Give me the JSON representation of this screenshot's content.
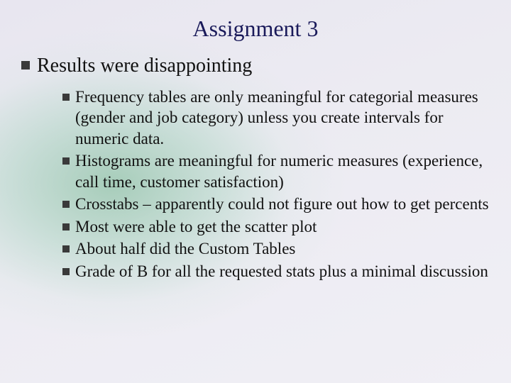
{
  "slide": {
    "title": "Assignment 3",
    "title_color": "#1a1a5a",
    "title_fontsize": 32,
    "background": {
      "radial_center": "22% 48%",
      "radial_colors": [
        "rgba(110,180,140,0.55)",
        "rgba(140,200,170,0.35)",
        "rgba(200,225,215,0.15)",
        "rgba(245,245,250,0)"
      ],
      "linear_colors": [
        "#e8e6f0",
        "#ecebf2",
        "#f0eff5"
      ]
    },
    "body_color": "#111111",
    "bullet_color": "#3a3a3a",
    "level1": {
      "fontsize": 28,
      "items": [
        {
          "text": "Results were disappointing",
          "children": [
            "Frequency tables are only meaningful for categorial measures (gender and job category) unless you create intervals for numeric data.",
            "Histograms are meaningful for numeric measures (experience, call time, customer satisfaction)",
            "Crosstabs – apparently could not figure out how to get percents",
            "Most were able to get the scatter plot",
            "About half did the Custom Tables",
            "Grade of B for all the requested stats plus a minimal discussion"
          ]
        }
      ]
    },
    "level2_fontsize": 23
  }
}
